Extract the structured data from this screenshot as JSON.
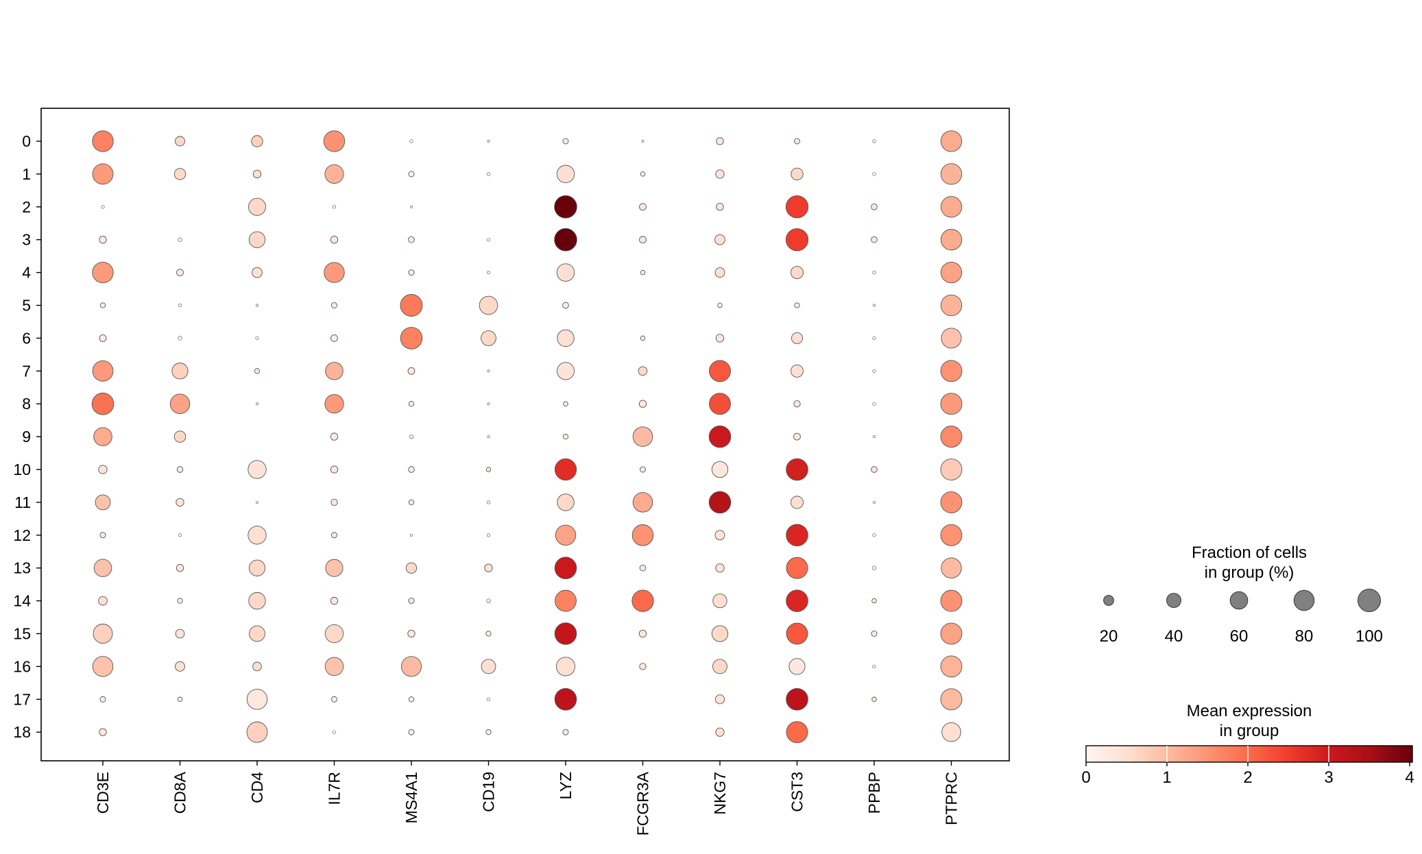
{
  "chart_data": {
    "type": "dotplot",
    "title": "",
    "xlabel": "",
    "ylabel": "",
    "genes": [
      "CD3E",
      "CD8A",
      "CD4",
      "IL7R",
      "MS4A1",
      "CD19",
      "LYZ",
      "FCGR3A",
      "NKG7",
      "CST3",
      "PPBP",
      "PTPRC"
    ],
    "groups": [
      "0",
      "1",
      "2",
      "3",
      "4",
      "5",
      "6",
      "7",
      "8",
      "9",
      "10",
      "11",
      "12",
      "13",
      "14",
      "15",
      "16",
      "17",
      "18"
    ],
    "fraction_pct": [
      [
        85,
        18,
        25,
        85,
        2,
        1,
        6,
        1,
        10,
        6,
        2,
        85
      ],
      [
        82,
        25,
        12,
        68,
        6,
        2,
        60,
        4,
        14,
        28,
        2,
        85
      ],
      [
        2,
        0,
        58,
        2,
        1,
        0,
        98,
        9,
        10,
        96,
        7,
        85
      ],
      [
        10,
        3,
        50,
        10,
        7,
        2,
        98,
        9,
        20,
        96,
        7,
        85
      ],
      [
        85,
        9,
        20,
        80,
        6,
        2,
        60,
        4,
        18,
        30,
        2,
        85
      ],
      [
        5,
        2,
        1,
        6,
        94,
        65,
        7,
        0,
        4,
        5,
        1,
        85
      ],
      [
        9,
        3,
        2,
        9,
        92,
        44,
        55,
        4,
        12,
        24,
        2,
        78
      ],
      [
        82,
        50,
        5,
        60,
        9,
        1,
        58,
        15,
        88,
        30,
        2,
        88
      ],
      [
        92,
        75,
        1,
        68,
        5,
        1,
        4,
        10,
        88,
        8,
        2,
        88
      ],
      [
        65,
        25,
        0,
        10,
        3,
        1,
        5,
        75,
        92,
        9,
        1,
        88
      ],
      [
        14,
        7,
        64,
        10,
        7,
        4,
        90,
        6,
        50,
        92,
        7,
        88
      ],
      [
        44,
        12,
        1,
        8,
        5,
        2,
        55,
        75,
        92,
        30,
        1,
        88
      ],
      [
        6,
        2,
        64,
        6,
        1,
        2,
        80,
        86,
        18,
        92,
        2,
        88
      ],
      [
        60,
        10,
        50,
        58,
        22,
        12,
        92,
        7,
        14,
        88,
        3,
        80
      ],
      [
        15,
        5,
        55,
        10,
        6,
        3,
        88,
        90,
        38,
        92,
        4,
        88
      ],
      [
        72,
        15,
        48,
        64,
        10,
        5,
        92,
        10,
        50,
        88,
        6,
        88
      ],
      [
        80,
        18,
        15,
        65,
        78,
        40,
        68,
        8,
        40,
        50,
        2,
        88
      ],
      [
        6,
        4,
        80,
        6,
        5,
        2,
        92,
        0,
        16,
        92,
        4,
        88
      ],
      [
        10,
        0,
        82,
        2,
        6,
        5,
        6,
        0,
        14,
        88,
        0,
        70
      ]
    ],
    "mean_expression": [
      [
        1.7,
        0.6,
        0.7,
        1.5,
        0.1,
        0.1,
        0.2,
        0.1,
        0.3,
        0.3,
        0.2,
        1.2
      ],
      [
        1.4,
        0.6,
        0.5,
        1.1,
        0.2,
        0.2,
        0.5,
        0.2,
        0.4,
        0.6,
        0.1,
        1.1
      ],
      [
        0.1,
        0.0,
        0.6,
        0.1,
        0.1,
        0.0,
        4.0,
        0.3,
        0.3,
        2.5,
        0.4,
        1.2
      ],
      [
        0.3,
        0.1,
        0.6,
        0.3,
        0.2,
        0.1,
        4.0,
        0.3,
        0.5,
        2.5,
        0.4,
        1.2
      ],
      [
        1.4,
        0.3,
        0.5,
        1.4,
        0.2,
        0.1,
        0.5,
        0.2,
        0.5,
        0.6,
        0.1,
        1.3
      ],
      [
        0.2,
        0.1,
        0.1,
        0.2,
        1.8,
        0.6,
        0.2,
        0.0,
        0.2,
        0.2,
        0.1,
        1.1
      ],
      [
        0.2,
        0.1,
        0.1,
        0.2,
        1.7,
        0.6,
        0.5,
        0.2,
        0.3,
        0.5,
        0.1,
        0.9
      ],
      [
        1.4,
        0.7,
        0.3,
        1.1,
        0.3,
        0.1,
        0.4,
        0.6,
        2.2,
        0.5,
        0.1,
        1.5
      ],
      [
        1.9,
        1.3,
        0.1,
        1.4,
        0.2,
        0.1,
        0.2,
        0.3,
        2.3,
        0.3,
        0.1,
        1.4
      ],
      [
        1.2,
        0.6,
        0.0,
        0.3,
        0.2,
        0.1,
        0.2,
        1.0,
        3.0,
        0.3,
        0.1,
        1.6
      ],
      [
        0.4,
        0.3,
        0.4,
        0.3,
        0.3,
        0.3,
        2.7,
        0.3,
        0.3,
        2.9,
        0.4,
        0.8
      ],
      [
        0.9,
        0.4,
        0.1,
        0.3,
        0.2,
        0.1,
        0.6,
        1.2,
        3.3,
        0.5,
        0.1,
        1.5
      ],
      [
        0.3,
        0.1,
        0.5,
        0.3,
        0.1,
        0.1,
        1.3,
        1.5,
        0.4,
        2.8,
        0.1,
        1.5
      ],
      [
        0.9,
        0.3,
        0.6,
        0.9,
        0.6,
        0.4,
        3.0,
        0.3,
        0.4,
        2.0,
        0.1,
        1.0
      ],
      [
        0.5,
        0.3,
        0.6,
        0.3,
        0.3,
        0.2,
        1.7,
        2.0,
        0.5,
        2.8,
        0.3,
        1.5
      ],
      [
        0.7,
        0.4,
        0.6,
        0.6,
        0.3,
        0.2,
        3.1,
        0.3,
        0.6,
        2.2,
        0.3,
        1.3
      ],
      [
        0.9,
        0.5,
        0.5,
        0.9,
        1.0,
        0.5,
        0.5,
        0.3,
        0.6,
        0.3,
        0.1,
        1.1
      ],
      [
        0.2,
        0.2,
        0.3,
        0.2,
        0.2,
        0.2,
        3.2,
        0.0,
        0.4,
        3.2,
        0.2,
        1.0
      ],
      [
        0.3,
        0.0,
        0.7,
        0.1,
        0.2,
        0.2,
        0.3,
        0.0,
        0.5,
        2.0,
        0.0,
        0.5
      ]
    ],
    "size_legend": {
      "title_line1": "Fraction of cells",
      "title_line2": "in group (%)",
      "values": [
        20,
        40,
        60,
        80,
        100
      ],
      "labels": [
        "20",
        "40",
        "60",
        "80",
        "100"
      ],
      "marker_color": "#808080"
    },
    "color_legend": {
      "title_line1": "Mean expression",
      "title_line2": "in group",
      "range": [
        0,
        4
      ],
      "ticks": [
        0,
        1,
        2,
        3,
        4
      ],
      "tick_labels": [
        "0",
        "1",
        "2",
        "3",
        "4"
      ],
      "colormap": "Reds",
      "colormap_stops": [
        "#fff5f0",
        "#fee0d2",
        "#fcbba1",
        "#fc9272",
        "#fb6a4a",
        "#ef3b2c",
        "#cb181d",
        "#a50f15",
        "#67000d"
      ]
    },
    "marker_edge_color": "#555555"
  }
}
